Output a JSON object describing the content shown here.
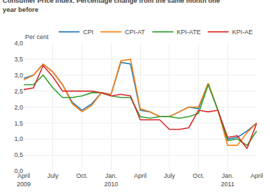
{
  "chart_data": {
    "type": "line",
    "title": "Consumer Price Index. Percentage change from the same month one\nyear before",
    "ylabel": "Per cent",
    "categories": [
      "April\n2009",
      null,
      null,
      "July",
      null,
      null,
      "Oct.",
      null,
      null,
      "Jan.\n2010",
      null,
      null,
      "April",
      null,
      null,
      "July",
      null,
      null,
      "Oct.",
      null,
      null,
      "Jan.\n2011",
      null,
      null,
      "April"
    ],
    "series": [
      {
        "name": "CPI",
        "values": [
          2.9,
          3.0,
          3.35,
          3.1,
          2.7,
          2.15,
          1.9,
          2.1,
          2.45,
          2.4,
          3.4,
          3.35,
          1.9,
          1.85,
          1.7,
          1.7,
          1.85,
          2.0,
          1.95,
          2.75,
          1.9,
          1.0,
          1.05,
          1.25,
          1.5
        ]
      },
      {
        "name": "CPI-AT",
        "values": [
          2.85,
          3.0,
          3.35,
          3.1,
          2.7,
          2.1,
          1.85,
          2.05,
          2.45,
          2.4,
          3.45,
          3.5,
          1.95,
          1.85,
          1.7,
          1.7,
          1.85,
          2.0,
          2.0,
          2.75,
          1.9,
          0.8,
          0.8,
          1.2,
          1.5
        ]
      },
      {
        "name": "KPI-ATE",
        "values": [
          2.7,
          2.7,
          3.0,
          2.6,
          2.3,
          2.3,
          2.35,
          2.45,
          2.45,
          2.35,
          2.3,
          2.3,
          1.7,
          1.65,
          1.7,
          1.7,
          1.65,
          1.7,
          1.8,
          2.7,
          1.9,
          0.95,
          1.0,
          0.8,
          1.25
        ]
      },
      {
        "name": "KPI-AE",
        "values": [
          2.55,
          2.6,
          3.3,
          2.95,
          2.5,
          2.5,
          2.5,
          2.5,
          2.45,
          2.35,
          2.4,
          2.35,
          1.6,
          1.6,
          1.6,
          1.3,
          1.3,
          1.35,
          1.9,
          1.85,
          1.9,
          1.05,
          1.1,
          0.7,
          1.5
        ]
      }
    ],
    "ylim": [
      0.0,
      4.0
    ],
    "yticks": [
      {
        "value": 0.0,
        "label": "0,0"
      },
      {
        "value": 0.5,
        "label": "0,5"
      },
      {
        "value": 1.0,
        "label": "1,0"
      },
      {
        "value": 1.5,
        "label": "1,5"
      },
      {
        "value": 2.0,
        "label": "2,0"
      },
      {
        "value": 2.5,
        "label": "2,5"
      },
      {
        "value": 3.0,
        "label": "3,0"
      },
      {
        "value": 3.5,
        "label": "3,5"
      },
      {
        "value": 4.0,
        "label": "4,0"
      }
    ],
    "grid": true,
    "legend": "upper right"
  }
}
